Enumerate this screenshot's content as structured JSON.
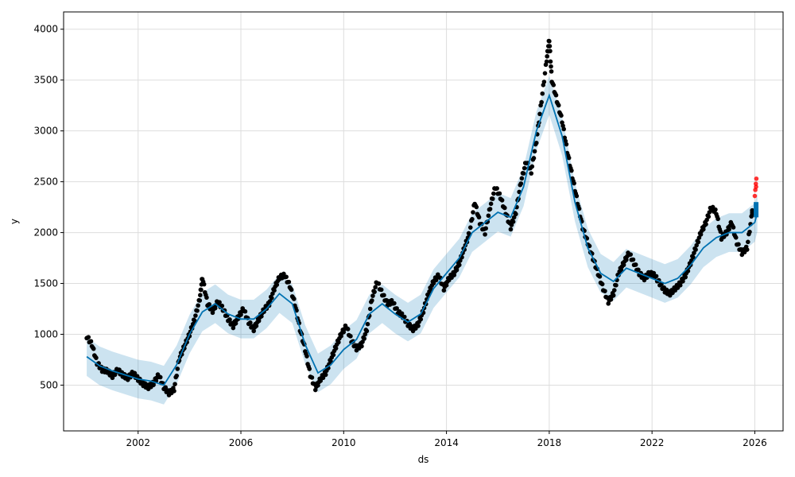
{
  "chart_data": {
    "type": "scatter",
    "title": "",
    "xlabel": "ds",
    "ylabel": "y",
    "xlim": [
      1999.1,
      2027.1
    ],
    "ylim": [
      50,
      4170
    ],
    "grid": true,
    "x_ticks": [
      2002,
      2006,
      2010,
      2014,
      2018,
      2022,
      2026
    ],
    "x_tick_labels": [
      "2002",
      "2006",
      "2010",
      "2014",
      "2018",
      "2022",
      "2026"
    ],
    "y_ticks": [
      500,
      1000,
      1500,
      2000,
      2500,
      3000,
      3500,
      4000
    ],
    "y_tick_labels": [
      "500",
      "1000",
      "1500",
      "2000",
      "2500",
      "3000",
      "3500",
      "4000"
    ],
    "colors": {
      "observed": "#000000",
      "forecast_line": "#0072B2",
      "uncertainty": "#0072B2",
      "recent_points": "#ff0000",
      "grid": "#dddddd"
    },
    "observed": [
      [
        2000.0,
        980
      ],
      [
        2000.2,
        900
      ],
      [
        2000.4,
        720
      ],
      [
        2000.6,
        650
      ],
      [
        2000.8,
        640
      ],
      [
        2001.0,
        590
      ],
      [
        2001.2,
        650
      ],
      [
        2001.4,
        600
      ],
      [
        2001.6,
        570
      ],
      [
        2001.8,
        620
      ],
      [
        2002.0,
        560
      ],
      [
        2002.2,
        510
      ],
      [
        2002.4,
        480
      ],
      [
        2002.6,
        520
      ],
      [
        2002.8,
        600
      ],
      [
        2003.0,
        480
      ],
      [
        2003.2,
        420
      ],
      [
        2003.4,
        460
      ],
      [
        2003.6,
        760
      ],
      [
        2003.8,
        880
      ],
      [
        2004.0,
        1000
      ],
      [
        2004.2,
        1150
      ],
      [
        2004.4,
        1350
      ],
      [
        2004.5,
        1560
      ],
      [
        2004.7,
        1300
      ],
      [
        2004.9,
        1230
      ],
      [
        2005.1,
        1320
      ],
      [
        2005.3,
        1250
      ],
      [
        2005.5,
        1150
      ],
      [
        2005.7,
        1080
      ],
      [
        2005.9,
        1170
      ],
      [
        2006.1,
        1250
      ],
      [
        2006.3,
        1120
      ],
      [
        2006.5,
        1050
      ],
      [
        2006.7,
        1150
      ],
      [
        2006.9,
        1240
      ],
      [
        2007.1,
        1300
      ],
      [
        2007.3,
        1450
      ],
      [
        2007.5,
        1560
      ],
      [
        2007.7,
        1580
      ],
      [
        2007.9,
        1480
      ],
      [
        2008.1,
        1300
      ],
      [
        2008.3,
        1050
      ],
      [
        2008.5,
        850
      ],
      [
        2008.7,
        600
      ],
      [
        2008.9,
        470
      ],
      [
        2009.1,
        560
      ],
      [
        2009.3,
        620
      ],
      [
        2009.5,
        750
      ],
      [
        2009.7,
        880
      ],
      [
        2009.9,
        1000
      ],
      [
        2010.1,
        1080
      ],
      [
        2010.3,
        940
      ],
      [
        2010.5,
        860
      ],
      [
        2010.7,
        900
      ],
      [
        2010.9,
        1050
      ],
      [
        2011.1,
        1350
      ],
      [
        2011.3,
        1520
      ],
      [
        2011.5,
        1400
      ],
      [
        2011.7,
        1300
      ],
      [
        2011.9,
        1320
      ],
      [
        2012.1,
        1220
      ],
      [
        2012.3,
        1180
      ],
      [
        2012.5,
        1100
      ],
      [
        2012.7,
        1050
      ],
      [
        2012.9,
        1100
      ],
      [
        2013.1,
        1230
      ],
      [
        2013.3,
        1400
      ],
      [
        2013.5,
        1520
      ],
      [
        2013.7,
        1580
      ],
      [
        2013.9,
        1450
      ],
      [
        2014.1,
        1550
      ],
      [
        2014.3,
        1600
      ],
      [
        2014.5,
        1700
      ],
      [
        2014.7,
        1850
      ],
      [
        2014.9,
        2000
      ],
      [
        2015.1,
        2300
      ],
      [
        2015.3,
        2100
      ],
      [
        2015.5,
        2000
      ],
      [
        2015.7,
        2250
      ],
      [
        2015.9,
        2450
      ],
      [
        2016.1,
        2350
      ],
      [
        2016.3,
        2200
      ],
      [
        2016.5,
        2050
      ],
      [
        2016.7,
        2200
      ],
      [
        2016.9,
        2500
      ],
      [
        2017.1,
        2700
      ],
      [
        2017.3,
        2600
      ],
      [
        2017.5,
        2900
      ],
      [
        2017.7,
        3300
      ],
      [
        2017.9,
        3700
      ],
      [
        2018.0,
        3900
      ],
      [
        2018.1,
        3500
      ],
      [
        2018.3,
        3300
      ],
      [
        2018.5,
        3100
      ],
      [
        2018.7,
        2800
      ],
      [
        2018.9,
        2550
      ],
      [
        2019.1,
        2300
      ],
      [
        2019.3,
        2050
      ],
      [
        2019.5,
        1900
      ],
      [
        2019.7,
        1750
      ],
      [
        2019.9,
        1600
      ],
      [
        2020.1,
        1450
      ],
      [
        2020.3,
        1320
      ],
      [
        2020.5,
        1400
      ],
      [
        2020.7,
        1600
      ],
      [
        2020.9,
        1700
      ],
      [
        2021.1,
        1800
      ],
      [
        2021.3,
        1700
      ],
      [
        2021.5,
        1600
      ],
      [
        2021.7,
        1550
      ],
      [
        2021.9,
        1600
      ],
      [
        2022.1,
        1580
      ],
      [
        2022.3,
        1500
      ],
      [
        2022.5,
        1430
      ],
      [
        2022.7,
        1400
      ],
      [
        2022.9,
        1450
      ],
      [
        2023.1,
        1500
      ],
      [
        2023.3,
        1580
      ],
      [
        2023.5,
        1700
      ],
      [
        2023.7,
        1850
      ],
      [
        2023.9,
        2000
      ],
      [
        2024.1,
        2100
      ],
      [
        2024.3,
        2250
      ],
      [
        2024.5,
        2200
      ],
      [
        2024.7,
        1950
      ],
      [
        2024.9,
        2000
      ],
      [
        2025.1,
        2100
      ],
      [
        2025.3,
        1900
      ],
      [
        2025.5,
        1800
      ],
      [
        2025.7,
        1850
      ],
      [
        2025.9,
        2200
      ]
    ],
    "recent": [
      [
        2026.0,
        2360
      ],
      [
        2026.02,
        2420
      ],
      [
        2026.04,
        2480
      ],
      [
        2026.06,
        2530
      ],
      [
        2026.05,
        2450
      ]
    ],
    "trend": [
      [
        2000.0,
        780
      ],
      [
        2000.5,
        690
      ],
      [
        2001.0,
        640
      ],
      [
        2001.5,
        600
      ],
      [
        2002.0,
        560
      ],
      [
        2002.5,
        540
      ],
      [
        2003.0,
        500
      ],
      [
        2003.5,
        700
      ],
      [
        2004.0,
        1000
      ],
      [
        2004.5,
        1220
      ],
      [
        2005.0,
        1300
      ],
      [
        2005.5,
        1200
      ],
      [
        2006.0,
        1150
      ],
      [
        2006.5,
        1150
      ],
      [
        2007.0,
        1250
      ],
      [
        2007.5,
        1400
      ],
      [
        2008.0,
        1300
      ],
      [
        2008.5,
        900
      ],
      [
        2009.0,
        620
      ],
      [
        2009.5,
        700
      ],
      [
        2010.0,
        850
      ],
      [
        2010.5,
        950
      ],
      [
        2011.0,
        1200
      ],
      [
        2011.5,
        1300
      ],
      [
        2012.0,
        1200
      ],
      [
        2012.5,
        1120
      ],
      [
        2013.0,
        1200
      ],
      [
        2013.5,
        1450
      ],
      [
        2014.0,
        1600
      ],
      [
        2014.5,
        1750
      ],
      [
        2015.0,
        2000
      ],
      [
        2015.5,
        2100
      ],
      [
        2016.0,
        2200
      ],
      [
        2016.5,
        2150
      ],
      [
        2017.0,
        2450
      ],
      [
        2017.5,
        3000
      ],
      [
        2018.0,
        3350
      ],
      [
        2018.5,
        2950
      ],
      [
        2019.0,
        2300
      ],
      [
        2019.5,
        1850
      ],
      [
        2020.0,
        1600
      ],
      [
        2020.5,
        1520
      ],
      [
        2021.0,
        1650
      ],
      [
        2021.5,
        1600
      ],
      [
        2022.0,
        1550
      ],
      [
        2022.5,
        1500
      ],
      [
        2023.0,
        1550
      ],
      [
        2023.5,
        1680
      ],
      [
        2024.0,
        1850
      ],
      [
        2024.5,
        1950
      ],
      [
        2025.0,
        2000
      ],
      [
        2025.5,
        2000
      ],
      [
        2026.0,
        2100
      ],
      [
        2026.1,
        2200
      ]
    ],
    "band_halfwidth": 190,
    "forecast_bar": {
      "x": 2026.05,
      "y_low": 2150,
      "y_high": 2300
    }
  }
}
